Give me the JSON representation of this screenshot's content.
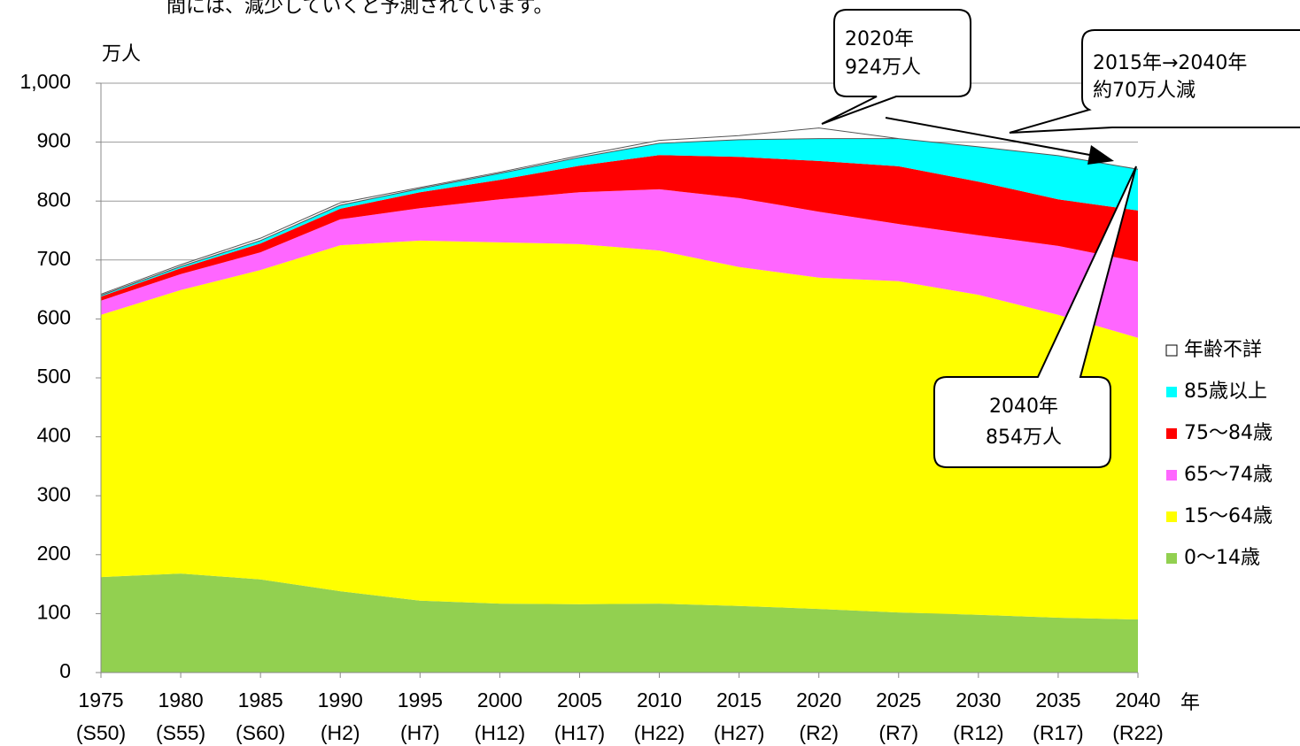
{
  "chart_data": {
    "type": "stacked_area",
    "heading": "間には、減少していくと予測されています。",
    "y_axis_label": "万人",
    "x_axis_label": "年",
    "categories": [
      "1975",
      "1980",
      "1985",
      "1990",
      "1995",
      "2000",
      "2005",
      "2010",
      "2015",
      "2020",
      "2025",
      "2030",
      "2035",
      "2040"
    ],
    "era_labels": [
      "(S50)",
      "(S55)",
      "(S60)",
      "(H2)",
      "(H7)",
      "(H12)",
      "(H17)",
      "(H22)",
      "(H27)",
      "(R2)",
      "(R7)",
      "(R12)",
      "(R17)",
      "(R22)"
    ],
    "series": [
      {
        "name": "0～14歳",
        "color": "#92d050",
        "values": [
          162,
          168,
          158,
          138,
          122,
          117,
          116,
          117,
          113,
          108,
          102,
          98,
          93,
          90
        ]
      },
      {
        "name": "15～64歳",
        "color": "#ffff00",
        "values": [
          445,
          481,
          525,
          587,
          611,
          613,
          611,
          599,
          575,
          562,
          562,
          543,
          514,
          478
        ]
      },
      {
        "name": "65～74歳",
        "color": "#ff66ff",
        "values": [
          24,
          27,
          30,
          44,
          55,
          73,
          88,
          104,
          117,
          112,
          97,
          101,
          117,
          129
        ]
      },
      {
        "name": "75～84歳",
        "color": "#ff0000",
        "values": [
          7,
          10,
          15,
          18,
          27,
          33,
          45,
          58,
          70,
          86,
          98,
          91,
          79,
          87
        ]
      },
      {
        "name": "85歳以上",
        "color": "#00ffff",
        "values": [
          2,
          3,
          5,
          6,
          6,
          11,
          14,
          20,
          29,
          38,
          47,
          59,
          74,
          70
        ]
      },
      {
        "name": "年齢不詳",
        "color": "#ffffff",
        "values": [
          2,
          3,
          4,
          4,
          2,
          2,
          3,
          5,
          7,
          18,
          0,
          0,
          0,
          0
        ]
      }
    ],
    "ylim": [
      0,
      1000
    ],
    "yticks": [
      0,
      100,
      200,
      300,
      400,
      500,
      600,
      700,
      800,
      900,
      {
        "value": 1000,
        "label": "1,000"
      }
    ],
    "grid": true,
    "annotations": [
      {
        "lines": [
          "2020年",
          "924万人"
        ]
      },
      {
        "lines": [
          "2015年→2040年",
          "約70万人減"
        ]
      },
      {
        "lines": [
          "2040年",
          "854万人"
        ]
      }
    ]
  }
}
